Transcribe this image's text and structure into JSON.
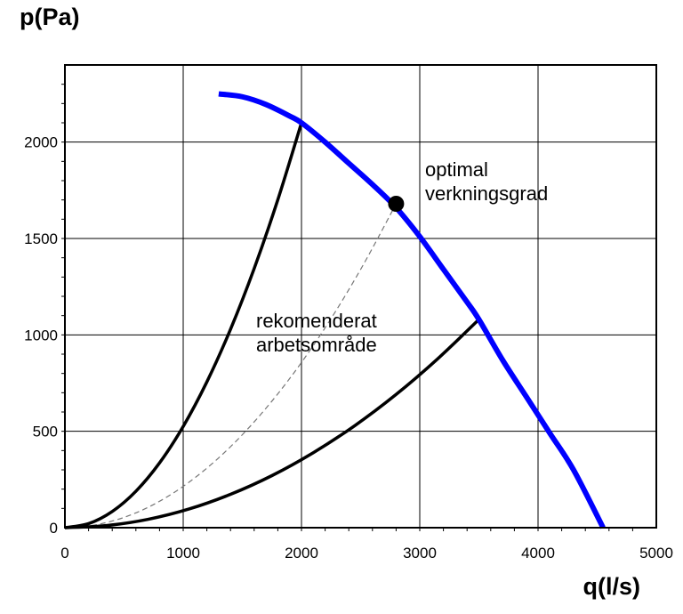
{
  "chart_data": {
    "type": "line",
    "xlabel": "q(l/s)",
    "ylabel": "p(Pa)",
    "xlim": [
      0,
      5000
    ],
    "ylim": [
      0,
      2400
    ],
    "x_ticks": [
      0,
      1000,
      2000,
      3000,
      4000,
      5000
    ],
    "y_ticks": [
      0,
      500,
      1000,
      1500,
      2000
    ],
    "x_tick_labels": [
      "0",
      "1000",
      "2000",
      "3000",
      "4000",
      "5000"
    ],
    "y_tick_labels": [
      "0",
      "500",
      "1000",
      "1500",
      "2000"
    ],
    "grid": true,
    "series": [
      {
        "color": "#0000ff",
        "style": "solid-thick",
        "x": [
          1300,
          1500,
          1700,
          1900,
          2000,
          2200,
          2400,
          2600,
          2800,
          3000,
          3200,
          3400,
          3500,
          3700,
          3900,
          4100,
          4300,
          4550
        ],
        "y": [
          2250,
          2235,
          2195,
          2135,
          2100,
          2000,
          1890,
          1780,
          1660,
          1510,
          1340,
          1170,
          1080,
          870,
          680,
          490,
          300,
          0
        ]
      },
      {
        "color": "#000000",
        "style": "solid",
        "x": [
          0,
          200,
          400,
          600,
          800,
          1000,
          1200,
          1400,
          1600,
          1800,
          2000
        ],
        "y": [
          0,
          21,
          84,
          189,
          336,
          525,
          756,
          1029,
          1344,
          1701,
          2100
        ]
      },
      {
        "color": "#000000",
        "style": "solid",
        "x": [
          0,
          350,
          700,
          1050,
          1400,
          1750,
          2100,
          2450,
          2800,
          3150,
          3500
        ],
        "y": [
          0,
          11,
          43,
          97,
          173,
          270,
          389,
          529,
          691,
          875,
          1080
        ]
      },
      {
        "color": "#777777",
        "style": "dashed",
        "x": [
          0,
          280,
          560,
          840,
          1120,
          1400,
          1680,
          1960,
          2240,
          2520,
          2800
        ],
        "y": [
          0,
          17,
          67,
          151,
          269,
          420,
          605,
          823,
          1075,
          1361,
          1680
        ]
      }
    ],
    "points": [
      {
        "x": 2800,
        "y": 1680,
        "color": "#000000"
      }
    ],
    "annotations": [
      {
        "lines": [
          "optimal",
          "verkningsgrad"
        ]
      },
      {
        "lines": [
          "rekomenderat",
          "arbetsområde"
        ]
      }
    ]
  }
}
